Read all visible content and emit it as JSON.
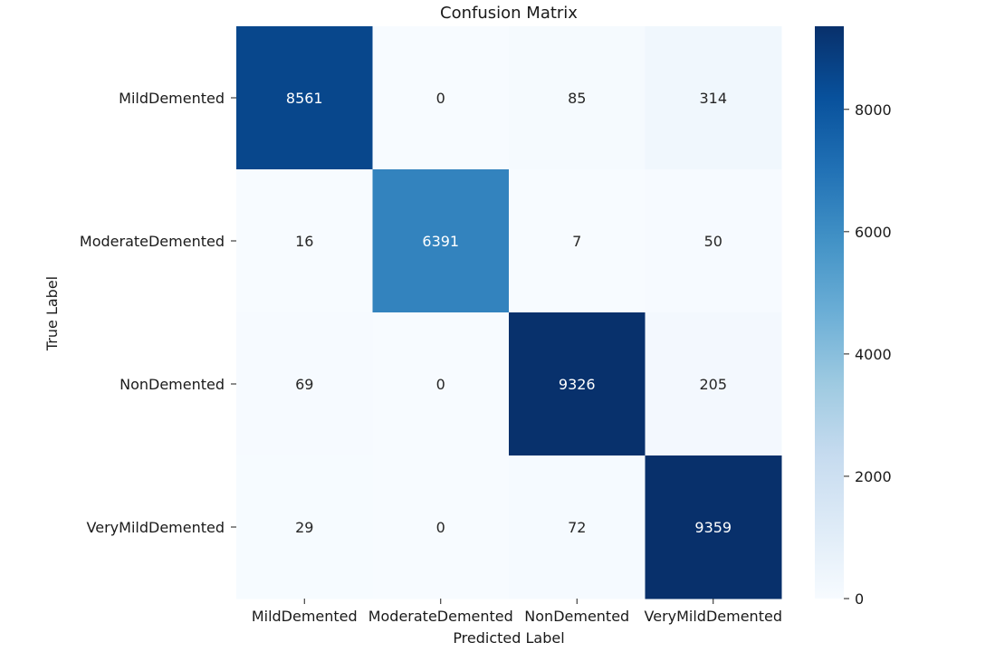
{
  "chart_data": {
    "type": "heatmap",
    "title": "Confusion Matrix",
    "xlabel": "Predicted Label",
    "ylabel": "True Label",
    "x_categories": [
      "MildDemented",
      "ModerateDemented",
      "NonDemented",
      "VeryMildDemented"
    ],
    "y_categories": [
      "MildDemented",
      "ModerateDemented",
      "NonDemented",
      "VeryMildDemented"
    ],
    "values": [
      [
        8561,
        0,
        85,
        314
      ],
      [
        16,
        6391,
        7,
        50
      ],
      [
        69,
        0,
        9326,
        205
      ],
      [
        29,
        0,
        72,
        9359
      ]
    ],
    "colorbar": {
      "min": 0,
      "max": 9359,
      "ticks": [
        0,
        2000,
        4000,
        6000,
        8000
      ]
    },
    "colormap": [
      "#f7fbff",
      "#deebf7",
      "#c6dbef",
      "#9ecae1",
      "#6baed6",
      "#4292c6",
      "#2171b5",
      "#08519c",
      "#08306b"
    ]
  }
}
